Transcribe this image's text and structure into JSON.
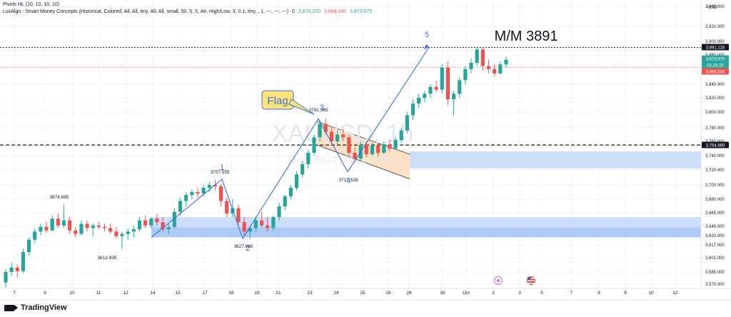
{
  "header": {
    "pivots_line": "Pivots HL (10, 10, 10, 10)",
    "lux_line": "LuxAlgo - Smart Money Concepts (Historical, Colored, All, All, tiny, All, All, small, 50, 5, 5, Atr, High/Low, 3, 0.1, tiny, , 1, ---, ---, ---)",
    "lux_values": [
      "3,874.370",
      "3,864.340",
      "3,873.675"
    ],
    "lux_zero": "0"
  },
  "branding": {
    "logo_text": "TradingView",
    "logo_icon": "tradingview-icon"
  },
  "watermark": {
    "symbol": "XAUUSD, 1h",
    "description": "Gold Spot / U.S. Dollar"
  },
  "chart_data": {
    "type": "candlestick",
    "currency": "USD",
    "ylim": [
      3560,
      3950
    ],
    "x_ticks": [
      {
        "label": "7",
        "x": -10
      },
      {
        "label": "9",
        "x": 6
      },
      {
        "label": "10",
        "x": 16
      },
      {
        "label": "11",
        "x": 26
      },
      {
        "label": "12",
        "x": 36
      },
      {
        "label": "14",
        "x": 46
      },
      {
        "label": "15",
        "x": 56
      },
      {
        "label": "17",
        "x": 66
      },
      {
        "label": "18",
        "x": 76
      },
      {
        "label": "19",
        "x": 86
      },
      {
        "label": "21",
        "x": 96
      },
      {
        "label": "23",
        "x": 106
      },
      {
        "label": "24",
        "x": 116
      },
      {
        "label": "25",
        "x": 126
      },
      {
        "label": "26",
        "x": 136
      },
      {
        "label": "28",
        "x": 146
      },
      {
        "label": "30",
        "x": 156
      },
      {
        "label": "Oct",
        "x": 166
      },
      {
        "label": "2",
        "x": 176
      },
      {
        "label": "3",
        "x": 186
      },
      {
        "label": "5",
        "x": 196
      },
      {
        "label": "7",
        "x": 206
      },
      {
        "label": "8",
        "x": 216
      },
      {
        "label": "9",
        "x": 226
      },
      {
        "label": "10",
        "x": 236
      },
      {
        "label": "12",
        "x": 246
      }
    ],
    "y_ticks": [
      {
        "label": "3,940.000",
        "v": 3940
      },
      {
        "label": "3,920.000",
        "v": 3920
      },
      {
        "label": "3,900.000",
        "v": 3900
      },
      {
        "label": "3,880.000",
        "v": 3880
      },
      {
        "label": "3,860.000",
        "v": 3860
      },
      {
        "label": "3,840.000",
        "v": 3840
      },
      {
        "label": "3,820.000",
        "v": 3820
      },
      {
        "label": "3,800.000",
        "v": 3800
      },
      {
        "label": "3,780.000",
        "v": 3780
      },
      {
        "label": "3,760.000",
        "v": 3760
      },
      {
        "label": "3,740.000",
        "v": 3740
      },
      {
        "label": "3,720.000",
        "v": 3720
      },
      {
        "label": "3,700.000",
        "v": 3700
      },
      {
        "label": "3,680.000",
        "v": 3680
      },
      {
        "label": "3,665.000",
        "v": 3665
      },
      {
        "label": "3,649.000",
        "v": 3649
      },
      {
        "label": "3,633.000",
        "v": 3633
      },
      {
        "label": "3,617.000",
        "v": 3617
      },
      {
        "label": "3,601.000",
        "v": 3601
      },
      {
        "label": "3,585.000",
        "v": 3585
      },
      {
        "label": "3,570.000",
        "v": 3570
      }
    ],
    "price_tags": [
      {
        "label": "3,891.128",
        "v": 3891.128,
        "bg": "#131722",
        "color": "#ffffff"
      },
      {
        "label": "3,873.675",
        "v": 3877,
        "bg": "#26a69a",
        "color": "#ffffff"
      },
      {
        "label": "02:25:25",
        "v": 3870,
        "bg": "#26a69a",
        "color": "#ffffff"
      },
      {
        "label": "3,865.000",
        "v": 3862,
        "bg": "#ef5350",
        "color": "#ffffff"
      },
      {
        "label": "3,754.869",
        "v": 3754.869,
        "bg": "#131722",
        "color": "#ffffff"
      }
    ],
    "candles": [
      [
        0,
        3572,
        3588,
        3566,
        3585
      ],
      [
        1,
        3585,
        3596,
        3580,
        3590
      ],
      [
        2,
        3590,
        3594,
        3578,
        3586
      ],
      [
        3,
        3586,
        3612,
        3584,
        3608
      ],
      [
        4,
        3608,
        3630,
        3604,
        3626
      ],
      [
        5,
        3626,
        3645,
        3620,
        3640
      ],
      [
        6,
        3640,
        3652,
        3634,
        3648
      ],
      [
        7,
        3648,
        3654,
        3638,
        3642
      ],
      [
        8,
        3642,
        3662,
        3640,
        3658
      ],
      [
        9,
        3658,
        3664,
        3646,
        3650
      ],
      [
        10,
        3650,
        3674,
        3646,
        3656
      ],
      [
        11,
        3656,
        3660,
        3636,
        3642
      ],
      [
        12,
        3642,
        3648,
        3630,
        3636
      ],
      [
        13,
        3636,
        3656,
        3634,
        3652
      ],
      [
        14,
        3652,
        3656,
        3640,
        3646
      ],
      [
        15,
        3646,
        3652,
        3632,
        3650
      ],
      [
        16,
        3650,
        3654,
        3644,
        3648
      ],
      [
        17,
        3648,
        3652,
        3640,
        3646
      ],
      [
        18,
        3646,
        3652,
        3636,
        3640
      ],
      [
        19,
        3640,
        3648,
        3628,
        3632
      ],
      [
        20,
        3632,
        3640,
        3612,
        3636
      ],
      [
        21,
        3636,
        3646,
        3626,
        3640
      ],
      [
        22,
        3640,
        3650,
        3630,
        3644
      ],
      [
        23,
        3644,
        3660,
        3640,
        3656
      ],
      [
        24,
        3656,
        3662,
        3646,
        3650
      ],
      [
        25,
        3650,
        3660,
        3646,
        3658
      ],
      [
        26,
        3658,
        3664,
        3650,
        3654
      ],
      [
        27,
        3654,
        3660,
        3640,
        3644
      ],
      [
        28,
        3644,
        3652,
        3636,
        3648
      ],
      [
        29,
        3648,
        3670,
        3646,
        3666
      ],
      [
        30,
        3666,
        3682,
        3662,
        3678
      ],
      [
        31,
        3678,
        3690,
        3672,
        3686
      ],
      [
        32,
        3686,
        3694,
        3680,
        3690
      ],
      [
        33,
        3690,
        3696,
        3682,
        3688
      ],
      [
        34,
        3688,
        3700,
        3684,
        3696
      ],
      [
        35,
        3696,
        3704,
        3690,
        3700
      ],
      [
        36,
        3700,
        3707,
        3692,
        3698
      ],
      [
        37,
        3698,
        3702,
        3672,
        3678
      ],
      [
        38,
        3678,
        3682,
        3660,
        3664
      ],
      [
        39,
        3664,
        3680,
        3660,
        3670
      ],
      [
        40,
        3670,
        3674,
        3650,
        3654
      ],
      [
        41,
        3654,
        3660,
        3634,
        3640
      ],
      [
        42,
        3640,
        3650,
        3628,
        3646
      ],
      [
        43,
        3646,
        3660,
        3640,
        3656
      ],
      [
        44,
        3656,
        3666,
        3648,
        3650
      ],
      [
        45,
        3650,
        3660,
        3640,
        3646
      ],
      [
        46,
        3646,
        3662,
        3642,
        3660
      ],
      [
        47,
        3660,
        3676,
        3656,
        3672
      ],
      [
        48,
        3672,
        3686,
        3668,
        3684
      ],
      [
        49,
        3684,
        3700,
        3680,
        3696
      ],
      [
        50,
        3696,
        3718,
        3692,
        3714
      ],
      [
        51,
        3714,
        3732,
        3710,
        3728
      ],
      [
        52,
        3728,
        3748,
        3722,
        3744
      ],
      [
        53,
        3744,
        3770,
        3740,
        3766
      ],
      [
        54,
        3766,
        3790,
        3760,
        3785
      ],
      [
        55,
        3785,
        3792,
        3770,
        3774
      ],
      [
        56,
        3774,
        3780,
        3756,
        3760
      ],
      [
        57,
        3760,
        3776,
        3756,
        3770
      ],
      [
        58,
        3770,
        3778,
        3760,
        3766
      ],
      [
        59,
        3766,
        3770,
        3740,
        3744
      ],
      [
        60,
        3744,
        3752,
        3730,
        3736
      ],
      [
        61,
        3736,
        3760,
        3732,
        3755
      ],
      [
        62,
        3755,
        3760,
        3738,
        3742
      ],
      [
        63,
        3742,
        3758,
        3740,
        3754
      ],
      [
        64,
        3754,
        3758,
        3738,
        3744
      ],
      [
        65,
        3744,
        3760,
        3742,
        3756
      ],
      [
        66,
        3756,
        3762,
        3746,
        3750
      ],
      [
        67,
        3750,
        3766,
        3748,
        3762
      ],
      [
        68,
        3762,
        3780,
        3758,
        3776
      ],
      [
        69,
        3776,
        3800,
        3772,
        3796
      ],
      [
        70,
        3796,
        3818,
        3790,
        3812
      ],
      [
        71,
        3812,
        3826,
        3806,
        3820
      ],
      [
        72,
        3820,
        3830,
        3814,
        3826
      ],
      [
        73,
        3826,
        3840,
        3820,
        3836
      ],
      [
        74,
        3836,
        3845,
        3828,
        3832
      ],
      [
        75,
        3832,
        3868,
        3826,
        3864
      ],
      [
        76,
        3864,
        3872,
        3810,
        3818
      ],
      [
        77,
        3818,
        3830,
        3796,
        3826
      ],
      [
        78,
        3826,
        3850,
        3820,
        3846
      ],
      [
        79,
        3846,
        3866,
        3840,
        3862
      ],
      [
        80,
        3862,
        3876,
        3856,
        3870
      ],
      [
        81,
        3870,
        3891,
        3866,
        3888
      ],
      [
        82,
        3888,
        3891,
        3860,
        3866
      ],
      [
        83,
        3866,
        3874,
        3856,
        3862
      ],
      [
        84,
        3862,
        3868,
        3852,
        3856
      ],
      [
        85,
        3856,
        3872,
        3854,
        3868
      ],
      [
        86,
        3868,
        3878,
        3864,
        3874
      ]
    ],
    "zones": [
      {
        "x0": 126,
        "x1": 246,
        "v0": 3722,
        "v1": 3746,
        "color": "#bbd3f8",
        "opacity": 0.75
      },
      {
        "x0": 50,
        "x1": 246,
        "v0": 3630,
        "v1": 3660,
        "color": "#bbd3f8",
        "opacity": 0.75
      },
      {
        "x0": 50,
        "x1": 246,
        "v0": 3630,
        "v1": 3647,
        "color": "#8fb6f3",
        "opacity": 0.5
      }
    ],
    "flag_channel": {
      "upper": [
        [
          106,
          3788
        ],
        [
          139,
          3742
        ]
      ],
      "lower": [
        [
          106,
          3755
        ],
        [
          139,
          3708
        ]
      ],
      "fill": "#fcd9b6",
      "stroke": "#5a5a5a"
    },
    "hlines": [
      {
        "v": 3754.869,
        "color": "#131722",
        "dash": "5,3",
        "width": 1.3
      },
      {
        "v": 3891.128,
        "color": "#131722",
        "dash": "2,2",
        "width": 0.8
      },
      {
        "v": 3864,
        "color": "#ef5350",
        "dash": "1.5,2",
        "width": 0.8
      }
    ],
    "wave_line": [
      [
        46,
        3630
      ],
      [
        66,
        3707.555
      ],
      [
        80,
        3627.86
      ],
      [
        110,
        3791.385
      ],
      [
        120,
        3717.528
      ],
      [
        145,
        3891
      ]
    ],
    "wave_line_color": "#3a6fd8",
    "wave_labels": [
      {
        "label": "1",
        "x": 66,
        "v": 3719
      },
      {
        "label": "2",
        "x": 80,
        "v": 3613
      },
      {
        "label": "3",
        "x": 110,
        "v": 3802
      },
      {
        "label": "4",
        "x": 120,
        "v": 3702
      },
      {
        "label": "5",
        "x": 145,
        "v": 3910
      }
    ],
    "price_labels": [
      {
        "label": "3674.695",
        "x": 13,
        "v": 3679
      },
      {
        "label": "3612.835",
        "x": 27,
        "v": 3604
      },
      {
        "label": "3707.555",
        "x": 64,
        "v": 3712
      },
      {
        "label": "3627.860",
        "x": 80,
        "v": 3622
      },
      {
        "label": "3791.385",
        "x": 108,
        "v": 3795
      },
      {
        "label": "3717.528",
        "x": 119,
        "v": 3705
      }
    ],
    "annotations": {
      "flag_label": "Flag",
      "target_label": "M/M 3891"
    }
  }
}
